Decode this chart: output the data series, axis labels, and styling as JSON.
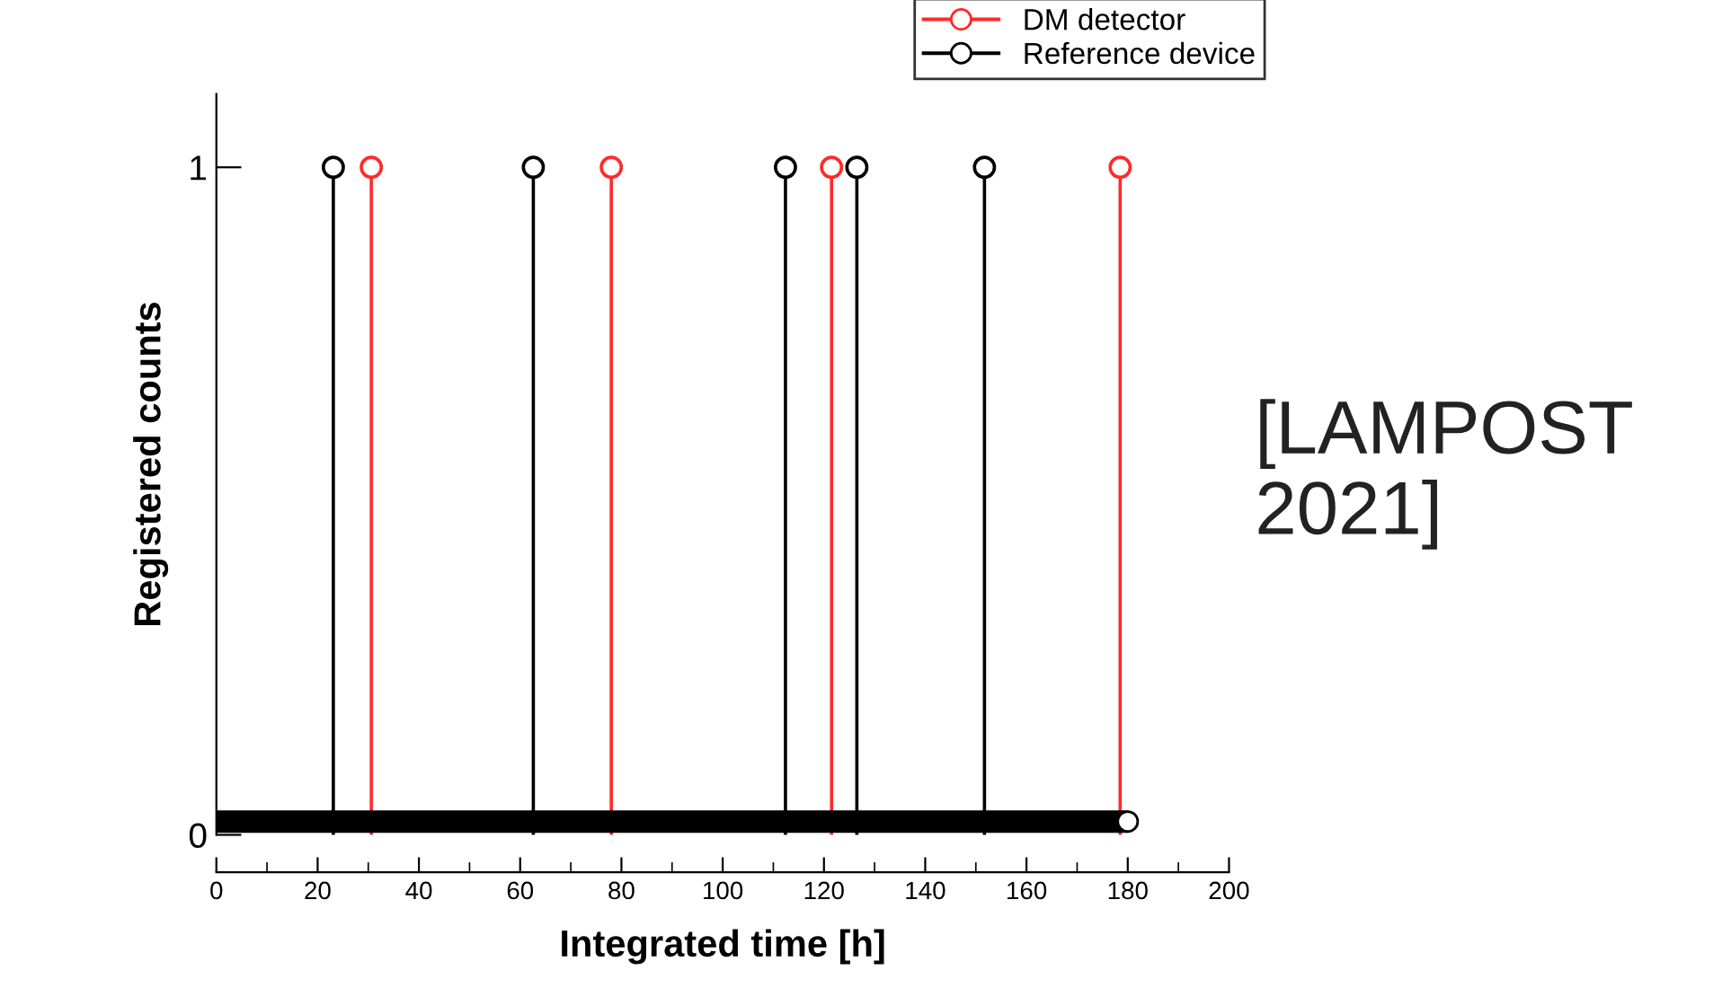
{
  "chart_data": {
    "type": "lollipop",
    "xlabel": "Integrated time [h]",
    "ylabel": "Registered counts",
    "xlim": [
      0,
      200
    ],
    "xticks": [
      0,
      20,
      40,
      60,
      80,
      100,
      120,
      140,
      160,
      180,
      200
    ],
    "ylim": [
      0,
      1.11
    ],
    "yticks": [
      0,
      1
    ],
    "marker": "circle",
    "legend": "top right",
    "grid": false,
    "annotations": [
      "[LAMPOST 2021]"
    ],
    "series": [
      {
        "name": "DM detector",
        "color": "#ff2a2a",
        "x": [
          30.6,
          78,
          121.5,
          178.5
        ],
        "values": [
          1,
          1,
          1,
          1
        ]
      },
      {
        "name": "Reference device",
        "color": "#000000",
        "x": [
          23.1,
          62.6,
          112.4,
          126.5,
          151.7
        ],
        "values": [
          1,
          1,
          1,
          1,
          1
        ]
      },
      {
        "type": "line",
        "color": "#000000",
        "x": [
          0,
          180
        ],
        "values": [
          0.02,
          0.02
        ]
      }
    ]
  }
}
